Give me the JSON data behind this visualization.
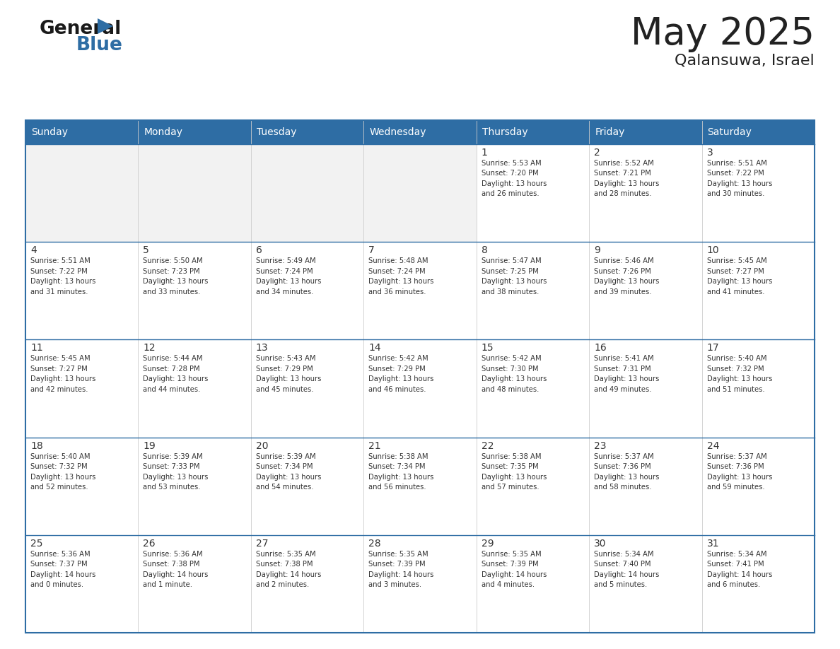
{
  "title": "May 2025",
  "subtitle": "Qalansuwa, Israel",
  "header_bg": "#2E6DA4",
  "header_text_color": "#FFFFFF",
  "cell_bg_white": "#FFFFFF",
  "cell_bg_gray": "#F2F2F2",
  "cell_border_color": "#2E6DA4",
  "grid_line_color": "#CCCCCC",
  "day_headers": [
    "Sunday",
    "Monday",
    "Tuesday",
    "Wednesday",
    "Thursday",
    "Friday",
    "Saturday"
  ],
  "weeks": [
    [
      {
        "day": "",
        "info": ""
      },
      {
        "day": "",
        "info": ""
      },
      {
        "day": "",
        "info": ""
      },
      {
        "day": "",
        "info": ""
      },
      {
        "day": "1",
        "info": "Sunrise: 5:53 AM\nSunset: 7:20 PM\nDaylight: 13 hours\nand 26 minutes."
      },
      {
        "day": "2",
        "info": "Sunrise: 5:52 AM\nSunset: 7:21 PM\nDaylight: 13 hours\nand 28 minutes."
      },
      {
        "day": "3",
        "info": "Sunrise: 5:51 AM\nSunset: 7:22 PM\nDaylight: 13 hours\nand 30 minutes."
      }
    ],
    [
      {
        "day": "4",
        "info": "Sunrise: 5:51 AM\nSunset: 7:22 PM\nDaylight: 13 hours\nand 31 minutes."
      },
      {
        "day": "5",
        "info": "Sunrise: 5:50 AM\nSunset: 7:23 PM\nDaylight: 13 hours\nand 33 minutes."
      },
      {
        "day": "6",
        "info": "Sunrise: 5:49 AM\nSunset: 7:24 PM\nDaylight: 13 hours\nand 34 minutes."
      },
      {
        "day": "7",
        "info": "Sunrise: 5:48 AM\nSunset: 7:24 PM\nDaylight: 13 hours\nand 36 minutes."
      },
      {
        "day": "8",
        "info": "Sunrise: 5:47 AM\nSunset: 7:25 PM\nDaylight: 13 hours\nand 38 minutes."
      },
      {
        "day": "9",
        "info": "Sunrise: 5:46 AM\nSunset: 7:26 PM\nDaylight: 13 hours\nand 39 minutes."
      },
      {
        "day": "10",
        "info": "Sunrise: 5:45 AM\nSunset: 7:27 PM\nDaylight: 13 hours\nand 41 minutes."
      }
    ],
    [
      {
        "day": "11",
        "info": "Sunrise: 5:45 AM\nSunset: 7:27 PM\nDaylight: 13 hours\nand 42 minutes."
      },
      {
        "day": "12",
        "info": "Sunrise: 5:44 AM\nSunset: 7:28 PM\nDaylight: 13 hours\nand 44 minutes."
      },
      {
        "day": "13",
        "info": "Sunrise: 5:43 AM\nSunset: 7:29 PM\nDaylight: 13 hours\nand 45 minutes."
      },
      {
        "day": "14",
        "info": "Sunrise: 5:42 AM\nSunset: 7:29 PM\nDaylight: 13 hours\nand 46 minutes."
      },
      {
        "day": "15",
        "info": "Sunrise: 5:42 AM\nSunset: 7:30 PM\nDaylight: 13 hours\nand 48 minutes."
      },
      {
        "day": "16",
        "info": "Sunrise: 5:41 AM\nSunset: 7:31 PM\nDaylight: 13 hours\nand 49 minutes."
      },
      {
        "day": "17",
        "info": "Sunrise: 5:40 AM\nSunset: 7:32 PM\nDaylight: 13 hours\nand 51 minutes."
      }
    ],
    [
      {
        "day": "18",
        "info": "Sunrise: 5:40 AM\nSunset: 7:32 PM\nDaylight: 13 hours\nand 52 minutes."
      },
      {
        "day": "19",
        "info": "Sunrise: 5:39 AM\nSunset: 7:33 PM\nDaylight: 13 hours\nand 53 minutes."
      },
      {
        "day": "20",
        "info": "Sunrise: 5:39 AM\nSunset: 7:34 PM\nDaylight: 13 hours\nand 54 minutes."
      },
      {
        "day": "21",
        "info": "Sunrise: 5:38 AM\nSunset: 7:34 PM\nDaylight: 13 hours\nand 56 minutes."
      },
      {
        "day": "22",
        "info": "Sunrise: 5:38 AM\nSunset: 7:35 PM\nDaylight: 13 hours\nand 57 minutes."
      },
      {
        "day": "23",
        "info": "Sunrise: 5:37 AM\nSunset: 7:36 PM\nDaylight: 13 hours\nand 58 minutes."
      },
      {
        "day": "24",
        "info": "Sunrise: 5:37 AM\nSunset: 7:36 PM\nDaylight: 13 hours\nand 59 minutes."
      }
    ],
    [
      {
        "day": "25",
        "info": "Sunrise: 5:36 AM\nSunset: 7:37 PM\nDaylight: 14 hours\nand 0 minutes."
      },
      {
        "day": "26",
        "info": "Sunrise: 5:36 AM\nSunset: 7:38 PM\nDaylight: 14 hours\nand 1 minute."
      },
      {
        "day": "27",
        "info": "Sunrise: 5:35 AM\nSunset: 7:38 PM\nDaylight: 14 hours\nand 2 minutes."
      },
      {
        "day": "28",
        "info": "Sunrise: 5:35 AM\nSunset: 7:39 PM\nDaylight: 14 hours\nand 3 minutes."
      },
      {
        "day": "29",
        "info": "Sunrise: 5:35 AM\nSunset: 7:39 PM\nDaylight: 14 hours\nand 4 minutes."
      },
      {
        "day": "30",
        "info": "Sunrise: 5:34 AM\nSunset: 7:40 PM\nDaylight: 14 hours\nand 5 minutes."
      },
      {
        "day": "31",
        "info": "Sunrise: 5:34 AM\nSunset: 7:41 PM\nDaylight: 14 hours\nand 6 minutes."
      }
    ]
  ],
  "text_color_dark": "#222222",
  "cell_text_color": "#333333",
  "num_weeks": 5,
  "num_cols": 7,
  "logo_triangle_color": "#2E6DA4",
  "fig_width": 11.88,
  "fig_height": 9.18,
  "dpi": 100
}
